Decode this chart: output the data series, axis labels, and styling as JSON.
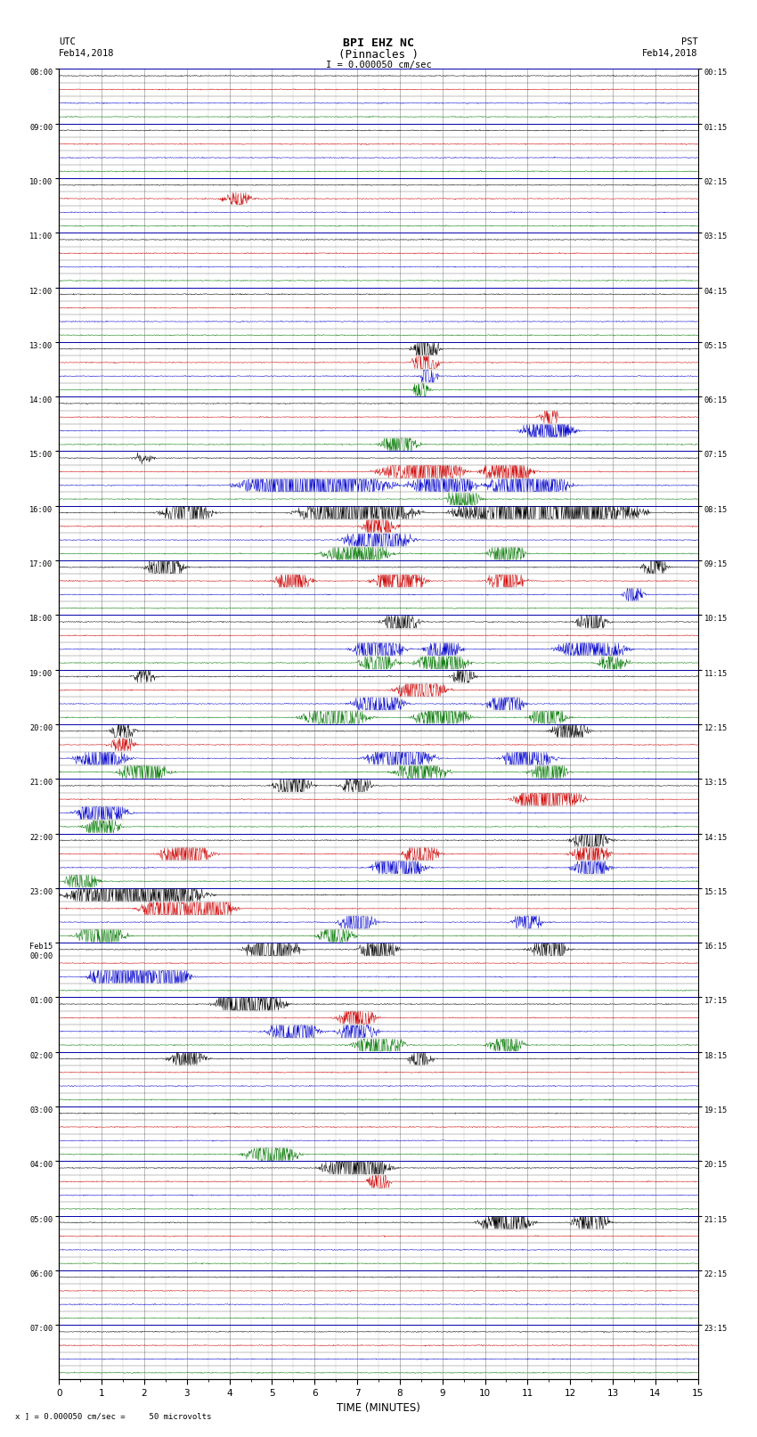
{
  "title_line1": "BPI EHZ NC",
  "title_line2": "(Pinnacles )",
  "scale_text": "I = 0.000050 cm/sec",
  "left_header": "UTC\nFeb14,2018",
  "right_header": "PST\nFeb14,2018",
  "bottom_label": "TIME (MINUTES)",
  "bottom_note": "x ] = 0.000050 cm/sec =     50 microvolts",
  "utc_times": [
    "08:00",
    "09:00",
    "10:00",
    "11:00",
    "12:00",
    "13:00",
    "14:00",
    "15:00",
    "16:00",
    "17:00",
    "18:00",
    "19:00",
    "20:00",
    "21:00",
    "22:00",
    "23:00",
    "Feb15\n00:00",
    "01:00",
    "02:00",
    "03:00",
    "04:00",
    "05:00",
    "06:00",
    "07:00"
  ],
  "pst_times": [
    "00:15",
    "01:15",
    "02:15",
    "03:15",
    "04:15",
    "05:15",
    "06:15",
    "07:15",
    "08:15",
    "09:15",
    "10:15",
    "11:15",
    "12:15",
    "13:15",
    "14:15",
    "15:15",
    "16:15",
    "17:15",
    "18:15",
    "19:15",
    "20:15",
    "21:15",
    "22:15",
    "23:15"
  ],
  "num_hours": 24,
  "traces_per_hour": 4,
  "minutes_per_row": 15,
  "samples_per_minute": 100,
  "colors_cycle": [
    "#000000",
    "#cc0000",
    "#0000cc",
    "#007700"
  ],
  "background_color": "#ffffff",
  "major_grid_color": "#aaaaaa",
  "hour_line_color": "#000000",
  "sub_line_color": "#000000",
  "noise_base": 0.006,
  "seed": 12345
}
